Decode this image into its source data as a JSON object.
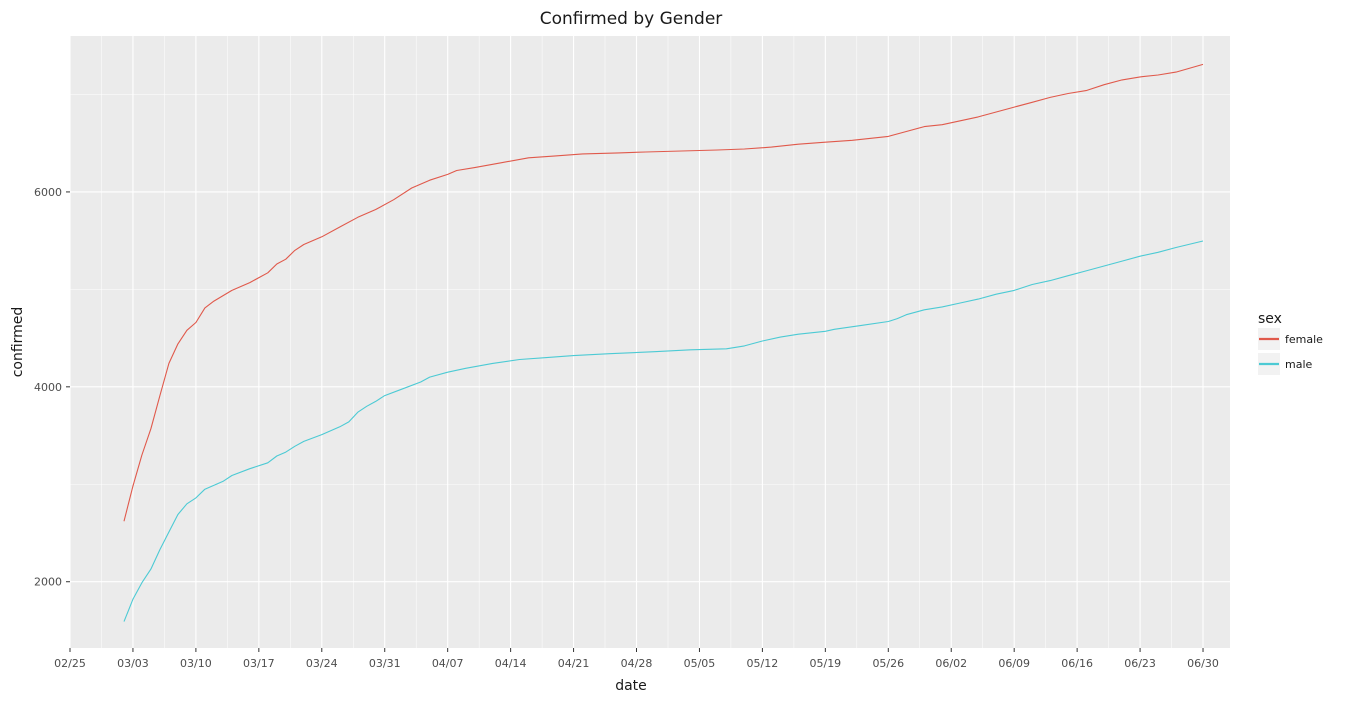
{
  "chart_data": {
    "type": "line",
    "title": "Confirmed by Gender",
    "xlabel": "date",
    "ylabel": "confirmed",
    "x_ticks": [
      "02/25",
      "03/03",
      "03/10",
      "03/17",
      "03/24",
      "03/31",
      "04/07",
      "04/14",
      "04/21",
      "04/28",
      "05/05",
      "05/12",
      "05/19",
      "05/26",
      "06/02",
      "06/09",
      "06/16",
      "06/23",
      "06/30"
    ],
    "y_ticks": [
      2000,
      4000,
      6000
    ],
    "xlim": [
      "2020-02-25",
      "2020-07-03"
    ],
    "ylim": [
      1320,
      7600
    ],
    "grid": true,
    "legend": {
      "title": "sex",
      "placement": "right"
    },
    "colors": {
      "female": "#e0594b",
      "male": "#4ccad4",
      "panel": "#ebebeb",
      "grid": "#ffffff"
    },
    "series": [
      {
        "name": "female",
        "color": "#e0594b",
        "points": [
          [
            "2020-03-02",
            2621
          ],
          [
            "2020-03-03",
            2980
          ],
          [
            "2020-03-04",
            3300
          ],
          [
            "2020-03-05",
            3570
          ],
          [
            "2020-03-06",
            3910
          ],
          [
            "2020-03-07",
            4240
          ],
          [
            "2020-03-08",
            4440
          ],
          [
            "2020-03-09",
            4580
          ],
          [
            "2020-03-10",
            4660
          ],
          [
            "2020-03-11",
            4810
          ],
          [
            "2020-03-12",
            4880
          ],
          [
            "2020-03-14",
            4990
          ],
          [
            "2020-03-16",
            5070
          ],
          [
            "2020-03-18",
            5170
          ],
          [
            "2020-03-19",
            5260
          ],
          [
            "2020-03-20",
            5310
          ],
          [
            "2020-03-21",
            5400
          ],
          [
            "2020-03-22",
            5460
          ],
          [
            "2020-03-24",
            5540
          ],
          [
            "2020-03-26",
            5640
          ],
          [
            "2020-03-28",
            5740
          ],
          [
            "2020-03-30",
            5820
          ],
          [
            "2020-04-01",
            5920
          ],
          [
            "2020-04-03",
            6040
          ],
          [
            "2020-04-05",
            6120
          ],
          [
            "2020-04-07",
            6180
          ],
          [
            "2020-04-08",
            6220
          ],
          [
            "2020-04-10",
            6250
          ],
          [
            "2020-04-13",
            6300
          ],
          [
            "2020-04-16",
            6350
          ],
          [
            "2020-04-19",
            6370
          ],
          [
            "2020-04-22",
            6390
          ],
          [
            "2020-04-26",
            6400
          ],
          [
            "2020-04-29",
            6410
          ],
          [
            "2020-05-03",
            6420
          ],
          [
            "2020-05-07",
            6430
          ],
          [
            "2020-05-10",
            6440
          ],
          [
            "2020-05-13",
            6460
          ],
          [
            "2020-05-16",
            6490
          ],
          [
            "2020-05-19",
            6510
          ],
          [
            "2020-05-22",
            6530
          ],
          [
            "2020-05-26",
            6570
          ],
          [
            "2020-05-28",
            6620
          ],
          [
            "2020-05-30",
            6670
          ],
          [
            "2020-06-01",
            6690
          ],
          [
            "2020-06-03",
            6730
          ],
          [
            "2020-06-05",
            6770
          ],
          [
            "2020-06-07",
            6820
          ],
          [
            "2020-06-09",
            6870
          ],
          [
            "2020-06-11",
            6920
          ],
          [
            "2020-06-13",
            6970
          ],
          [
            "2020-06-15",
            7010
          ],
          [
            "2020-06-17",
            7040
          ],
          [
            "2020-06-19",
            7100
          ],
          [
            "2020-06-21",
            7150
          ],
          [
            "2020-06-23",
            7180
          ],
          [
            "2020-06-25",
            7200
          ],
          [
            "2020-06-27",
            7230
          ],
          [
            "2020-06-30",
            7309
          ]
        ]
      },
      {
        "name": "male",
        "color": "#4ccad4",
        "points": [
          [
            "2020-03-02",
            1591
          ],
          [
            "2020-03-03",
            1820
          ],
          [
            "2020-03-04",
            1990
          ],
          [
            "2020-03-05",
            2130
          ],
          [
            "2020-03-06",
            2330
          ],
          [
            "2020-03-07",
            2510
          ],
          [
            "2020-03-08",
            2690
          ],
          [
            "2020-03-09",
            2800
          ],
          [
            "2020-03-10",
            2860
          ],
          [
            "2020-03-11",
            2950
          ],
          [
            "2020-03-13",
            3030
          ],
          [
            "2020-03-14",
            3090
          ],
          [
            "2020-03-16",
            3160
          ],
          [
            "2020-03-18",
            3220
          ],
          [
            "2020-03-19",
            3290
          ],
          [
            "2020-03-20",
            3330
          ],
          [
            "2020-03-21",
            3390
          ],
          [
            "2020-03-22",
            3440
          ],
          [
            "2020-03-24",
            3510
          ],
          [
            "2020-03-26",
            3590
          ],
          [
            "2020-03-27",
            3640
          ],
          [
            "2020-03-28",
            3740
          ],
          [
            "2020-03-29",
            3800
          ],
          [
            "2020-03-30",
            3850
          ],
          [
            "2020-03-31",
            3910
          ],
          [
            "2020-04-02",
            3980
          ],
          [
            "2020-04-04",
            4050
          ],
          [
            "2020-04-05",
            4100
          ],
          [
            "2020-04-07",
            4150
          ],
          [
            "2020-04-09",
            4190
          ],
          [
            "2020-04-12",
            4240
          ],
          [
            "2020-04-15",
            4280
          ],
          [
            "2020-04-18",
            4300
          ],
          [
            "2020-04-21",
            4320
          ],
          [
            "2020-04-25",
            4340
          ],
          [
            "2020-04-30",
            4360
          ],
          [
            "2020-05-04",
            4380
          ],
          [
            "2020-05-08",
            4390
          ],
          [
            "2020-05-10",
            4420
          ],
          [
            "2020-05-12",
            4470
          ],
          [
            "2020-05-14",
            4510
          ],
          [
            "2020-05-16",
            4540
          ],
          [
            "2020-05-19",
            4570
          ],
          [
            "2020-05-20",
            4590
          ],
          [
            "2020-05-23",
            4630
          ],
          [
            "2020-05-26",
            4670
          ],
          [
            "2020-05-27",
            4700
          ],
          [
            "2020-05-28",
            4740
          ],
          [
            "2020-05-30",
            4790
          ],
          [
            "2020-06-01",
            4820
          ],
          [
            "2020-06-03",
            4860
          ],
          [
            "2020-06-05",
            4900
          ],
          [
            "2020-06-07",
            4950
          ],
          [
            "2020-06-09",
            4990
          ],
          [
            "2020-06-11",
            5050
          ],
          [
            "2020-06-13",
            5090
          ],
          [
            "2020-06-15",
            5140
          ],
          [
            "2020-06-17",
            5190
          ],
          [
            "2020-06-19",
            5240
          ],
          [
            "2020-06-21",
            5290
          ],
          [
            "2020-06-23",
            5340
          ],
          [
            "2020-06-25",
            5380
          ],
          [
            "2020-06-27",
            5430
          ],
          [
            "2020-06-30",
            5496
          ]
        ]
      }
    ]
  }
}
